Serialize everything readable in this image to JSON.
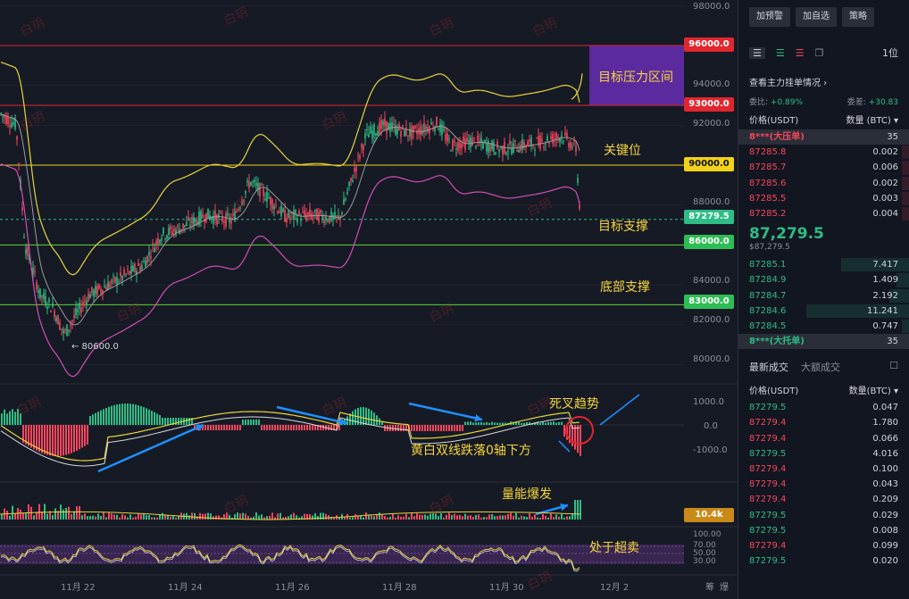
{
  "chart": {
    "axis_labels": [
      "98000.0",
      "94000.0",
      "92000.0",
      "88000.0",
      "84000.0",
      "82000.0",
      "80000.0"
    ],
    "price_tags": [
      {
        "text": "96000.0",
        "bg": "#e0262e",
        "fg": "#ffffff"
      },
      {
        "text": "93000.0",
        "bg": "#e0262e",
        "fg": "#ffffff"
      },
      {
        "text": "90000.0",
        "bg": "#f2d21a",
        "fg": "#111111"
      },
      {
        "text": "87279.5",
        "bg": "#2ebd85",
        "fg": "#ffffff"
      },
      {
        "text": "86000.0",
        "bg": "#2ebd55",
        "fg": "#ffffff"
      },
      {
        "text": "83000.0",
        "bg": "#2ebd55",
        "fg": "#ffffff"
      }
    ],
    "macd_labels": [
      "1000.0",
      "0.0",
      "-1000.0"
    ],
    "volume_tag": "10.4k",
    "rsi_labels": [
      "100.00",
      "70.00",
      "50.00",
      "30.00"
    ],
    "low_marker": "← 80600.0",
    "dates": [
      "11月 22",
      "11月 24",
      "11月 26",
      "11月 28",
      "11月 30",
      "12月 2"
    ],
    "corner_labels": [
      "筹",
      "爆"
    ],
    "annotations": {
      "target_zone": "目标压力区间",
      "key_level": "关键位",
      "target_support": "目标支撑",
      "bottom_support": "底部支撑",
      "death_cross": "死叉趋势",
      "below_zero": "黄白双线跌落0轴下方",
      "volume_burst": "量能爆发",
      "oversold": "处于超卖"
    },
    "watermark": "白玥"
  },
  "panel": {
    "top_buttons": [
      "加预警",
      "加自选",
      "策略"
    ],
    "interval": "1位",
    "orders_link": "查看主力挂单情况 ›",
    "ratio_label": "委比:",
    "ratio_value": "+0.89%",
    "diff_label": "委差:",
    "diff_value": "+30.83",
    "col_price": "价格(USDT)",
    "col_qty": "数量 (BTC) ▾",
    "big_ask": {
      "label": "8***(大压单)",
      "qty": "35"
    },
    "asks": [
      {
        "price": "87285.8",
        "qty": "0.002"
      },
      {
        "price": "87285.7",
        "qty": "0.006"
      },
      {
        "price": "87285.6",
        "qty": "0.002"
      },
      {
        "price": "87285.5",
        "qty": "0.003"
      },
      {
        "price": "87285.2",
        "qty": "0.004"
      }
    ],
    "mid_price": "87,279.5",
    "mid_sub": "$87,279.5",
    "bids": [
      {
        "price": "87285.1",
        "qty": "7.417"
      },
      {
        "price": "87284.9",
        "qty": "1.409"
      },
      {
        "price": "87284.7",
        "qty": "2.192"
      },
      {
        "price": "87284.6",
        "qty": "11.241"
      },
      {
        "price": "87284.5",
        "qty": "0.747"
      }
    ],
    "big_bid": {
      "label": "8***(大托单)",
      "qty": "35"
    },
    "tab_latest": "最新成交",
    "tab_big": "大额成交",
    "tr_col_price": "价格(USDT)",
    "tr_col_qty": "数量(BTC) ▾",
    "trades": [
      {
        "price": "87279.5",
        "qty": "0.047",
        "side": "up"
      },
      {
        "price": "87279.4",
        "qty": "1.780",
        "side": "dn"
      },
      {
        "price": "87279.4",
        "qty": "0.066",
        "side": "dn"
      },
      {
        "price": "87279.5",
        "qty": "4.016",
        "side": "up"
      },
      {
        "price": "87279.4",
        "qty": "0.100",
        "side": "dn"
      },
      {
        "price": "87279.4",
        "qty": "0.043",
        "side": "dn"
      },
      {
        "price": "87279.4",
        "qty": "0.209",
        "side": "dn"
      },
      {
        "price": "87279.5",
        "qty": "0.029",
        "side": "up"
      },
      {
        "price": "87279.5",
        "qty": "0.008",
        "side": "up"
      },
      {
        "price": "87279.4",
        "qty": "0.099",
        "side": "dn"
      },
      {
        "price": "87279.5",
        "qty": "0.020",
        "side": "up"
      }
    ]
  }
}
